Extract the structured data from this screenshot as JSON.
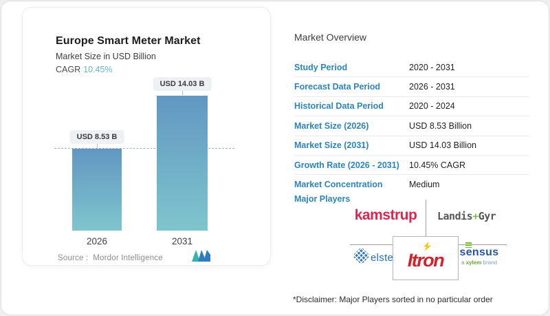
{
  "chart_card": {
    "title": "Europe Smart Meter Market",
    "subtitle": "Market Size in USD Billion",
    "cagr_label": "CAGR",
    "cagr_value": "10.45%",
    "source_label": "Source :",
    "source_value": "Mordor Intelligence",
    "logo_name": "mordor-intelligence-logo"
  },
  "chart_data": {
    "type": "bar",
    "title": "Europe Smart Meter Market",
    "ylabel": "Market Size in USD Billion",
    "unit": "USD Billion",
    "categories": [
      "2026",
      "2031"
    ],
    "values": [
      8.53,
      14.03
    ],
    "value_labels": [
      "USD 8.53 B",
      "USD 14.03 B"
    ],
    "cagr_percent": 10.45,
    "reference_line_value": 8.53,
    "ylim": [
      0,
      15
    ],
    "grid": false,
    "legend": "none",
    "bar_color_top": "#6197c2",
    "bar_color_bottom": "#7fc5cd"
  },
  "overview": {
    "heading": "Market Overview",
    "rows": [
      {
        "label": "Study Period",
        "value": "2020 - 2031"
      },
      {
        "label": "Forecast Data Period",
        "value": "2026 - 2031"
      },
      {
        "label": "Historical Data Period",
        "value": "2020 - 2024"
      },
      {
        "label": "Market Size (2026)",
        "value": "USD 8.53 Billion"
      },
      {
        "label": "Market Size (2031)",
        "value": "USD 14.03 Billion"
      },
      {
        "label": "Growth Rate (2026 - 2031)",
        "value": "10.45% CAGR"
      },
      {
        "label": "Market Concentration",
        "value": "Medium"
      }
    ],
    "major_players_label": "Major Players",
    "disclaimer": "*Disclaimer: Major Players sorted in no particular order"
  },
  "players": {
    "kamstrup": "kamstrup",
    "landis_part1": "Landis",
    "landis_plus": "+",
    "landis_part2": "Gyr",
    "elster": "elster",
    "itron_part1": "Itr",
    "itron_o": "o",
    "itron_part2": "n",
    "sensus": "sensus",
    "sensus_sub_a": "a ",
    "sensus_sub_xylem": "xylem",
    "sensus_sub_brand": " brand"
  },
  "colors": {
    "accent_blue_labels": "#2d84ba",
    "cagr_teal": "#66b5c4",
    "bar_gradient_top": "#6197c2",
    "bar_gradient_bottom": "#7fc5cd",
    "kamstrup_red": "#e0244e",
    "landis_gray": "#55565a",
    "landis_plus_green": "#84bd3f",
    "elster_blue": "#2a6fb8",
    "itron_red": "#d2232a",
    "itron_bolt_yellow": "#f6c60a",
    "sensus_blue": "#28549f",
    "sensus_green": "#76b82a",
    "mordor_teal": "#35b3aa",
    "mordor_blue": "#2f7cc0"
  }
}
